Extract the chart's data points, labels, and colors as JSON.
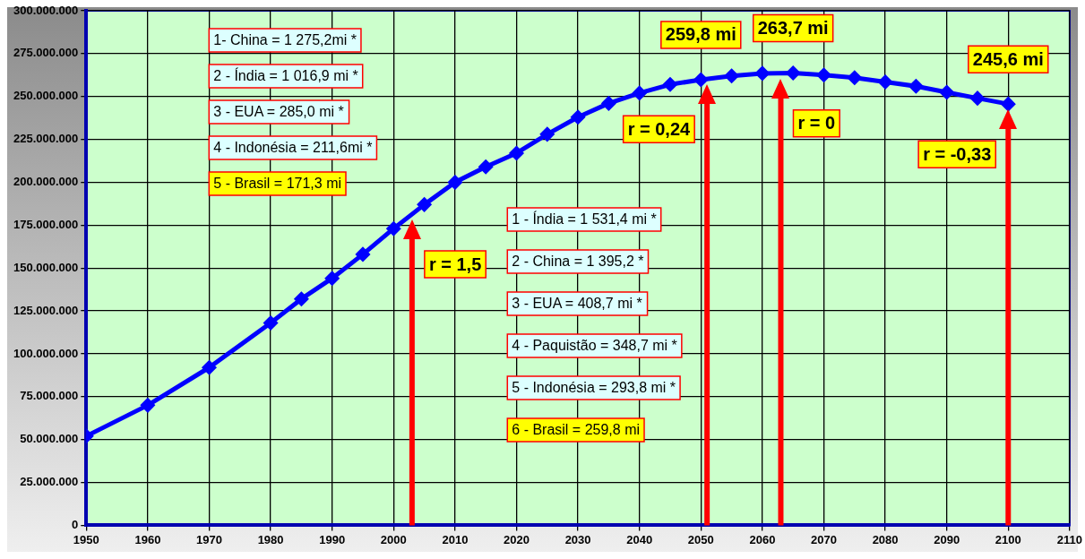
{
  "chart_data": {
    "type": "line",
    "x": [
      1950,
      1960,
      1970,
      1980,
      1985,
      1990,
      1995,
      2000,
      2005,
      2010,
      2015,
      2020,
      2025,
      2030,
      2035,
      2040,
      2045,
      2050,
      2055,
      2060,
      2065,
      2070,
      2075,
      2080,
      2085,
      2090,
      2095,
      2100
    ],
    "series": [
      {
        "color": "#0000ff",
        "values": [
          52000000,
          70000000,
          92000000,
          118000000,
          132000000,
          144000000,
          158000000,
          173000000,
          187000000,
          200000000,
          209000000,
          217000000,
          228000000,
          238000000,
          246000000,
          252000000,
          257000000,
          259800000,
          262000000,
          263500000,
          263700000,
          262500000,
          261000000,
          258500000,
          256000000,
          252500000,
          249000000,
          245600000
        ]
      }
    ],
    "ref_lines": [
      {
        "axis": "x",
        "value": 2003,
        "color": "#ff0000"
      },
      {
        "axis": "x",
        "value": 2051,
        "color": "#ff0000"
      },
      {
        "axis": "x",
        "value": 2063,
        "color": "#ff0000"
      },
      {
        "axis": "x",
        "value": 2100,
        "color": "#ff0000"
      }
    ],
    "xlim": [
      1950,
      2110
    ],
    "xticks": [
      1950,
      1960,
      1970,
      1980,
      1990,
      2000,
      2010,
      2020,
      2030,
      2040,
      2050,
      2060,
      2070,
      2080,
      2090,
      2100,
      2110
    ],
    "ylim": [
      0,
      300000000
    ],
    "yticks": [
      0,
      {
        "value": 25000000,
        "label": "25.000.000"
      },
      {
        "value": 50000000,
        "label": "50.000.000"
      },
      {
        "value": 75000000,
        "label": "75.000.000"
      },
      {
        "value": 100000000,
        "label": "100.000.000"
      },
      {
        "value": 125000000,
        "label": "125.000.000"
      },
      {
        "value": 150000000,
        "label": "150.000.000"
      },
      {
        "value": 175000000,
        "label": "175.000.000"
      },
      {
        "value": 200000000,
        "label": "200.000.000"
      },
      {
        "value": 225000000,
        "label": "225.000.000"
      },
      {
        "value": 250000000,
        "label": "250.000.000"
      },
      {
        "value": 275000000,
        "label": "275.000.000"
      },
      {
        "value": 300000000,
        "label": "300.000.000"
      }
    ],
    "grid": true,
    "legend": false,
    "marker": "diamond",
    "line_style": "solid",
    "annotations": [
      "1- China = 1 275,2mi *",
      "2 - Índia = 1 016,9 mi *",
      "3 - EUA = 285,0 mi *",
      "4 - Indonésia = 211,6mi *",
      "5 - Brasil = 171,3 mi",
      "1 - Índia = 1 531,4 mi *",
      "2 - China = 1 395,2 *",
      "3 - EUA = 408,7 mi *",
      "4 - Paquistão = 348,7 mi *",
      "5 - Indonésia = 293,8 mi *",
      "6 - Brasil = 259,8 mi",
      "r = 1,5",
      "r = 0,24",
      "r = 0",
      "r = -0,33",
      {
        "text": "259,8 mi",
        "x": 2050,
        "y": 259800000
      },
      {
        "text": "263,7 mi",
        "x": 2065,
        "y": 263700000
      },
      {
        "text": "245,6 mi",
        "x": 2100,
        "y": 245600000
      }
    ]
  }
}
